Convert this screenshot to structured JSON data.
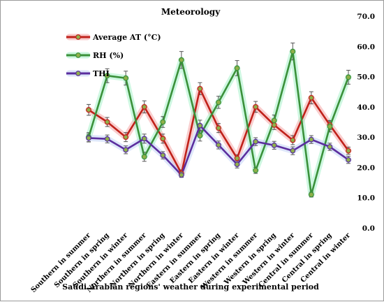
{
  "chart_data": {
    "type": "line",
    "title": "Meteorology",
    "xlabel": "Saudi Arabian regions' weather during experimental period",
    "ylabel": "",
    "ylim": [
      0,
      70
    ],
    "yticks": [
      "0.0",
      "10.0",
      "20.0",
      "30.0",
      "40.0",
      "50.0",
      "60.0",
      "70.0"
    ],
    "y_axis_side": "right",
    "grid": false,
    "legend_position": "top-left",
    "categories": [
      "Southern in summer",
      "Southern in spring",
      "Southern in winter",
      "Northern in summer",
      "Northern in spring",
      "Northern in winter",
      "Eastern in summer",
      "Eastern in spring",
      "Eastern in winter",
      "Western in summer",
      "Western in spring",
      "Western in winter",
      "Central in summer",
      "Central in spring",
      "Central in winter"
    ],
    "series": [
      {
        "name": "Average AT (°C)",
        "color": "#c0211a",
        "glow": "#f4a6a6",
        "values": [
          39.0,
          35.0,
          30.0,
          40.0,
          29.5,
          18.0,
          46.0,
          33.0,
          23.0,
          40.0,
          34.0,
          29.0,
          43.0,
          34.0,
          25.5
        ],
        "errors": [
          1.8,
          1.5,
          1.5,
          2.0,
          1.5,
          1.2,
          2.0,
          1.5,
          1.2,
          1.8,
          1.5,
          1.5,
          2.0,
          1.5,
          1.2
        ]
      },
      {
        "name": "RH (%)",
        "color": "#3a913a",
        "glow": "#a6f0c8",
        "values": [
          30.0,
          50.3,
          49.5,
          23.5,
          35.0,
          55.5,
          30.5,
          41.5,
          52.8,
          19.0,
          35.5,
          58.3,
          11.0,
          33.5,
          49.8
        ],
        "errors": [
          1.5,
          2.3,
          2.3,
          1.5,
          1.8,
          2.8,
          1.8,
          2.0,
          2.5,
          1.0,
          1.8,
          2.8,
          0.8,
          1.8,
          2.3
        ]
      },
      {
        "name": "THI",
        "color": "#5b2e9e",
        "glow": "#c2d3f5",
        "values": [
          29.7,
          29.4,
          25.8,
          29.5,
          24.0,
          17.5,
          33.8,
          27.4,
          21.0,
          28.5,
          27.3,
          25.5,
          29.2,
          26.8,
          22.5
        ],
        "errors": [
          1.3,
          1.3,
          1.3,
          1.5,
          1.2,
          0.8,
          1.8,
          1.3,
          1.2,
          1.3,
          1.3,
          1.3,
          1.3,
          1.2,
          1.2
        ]
      }
    ]
  }
}
